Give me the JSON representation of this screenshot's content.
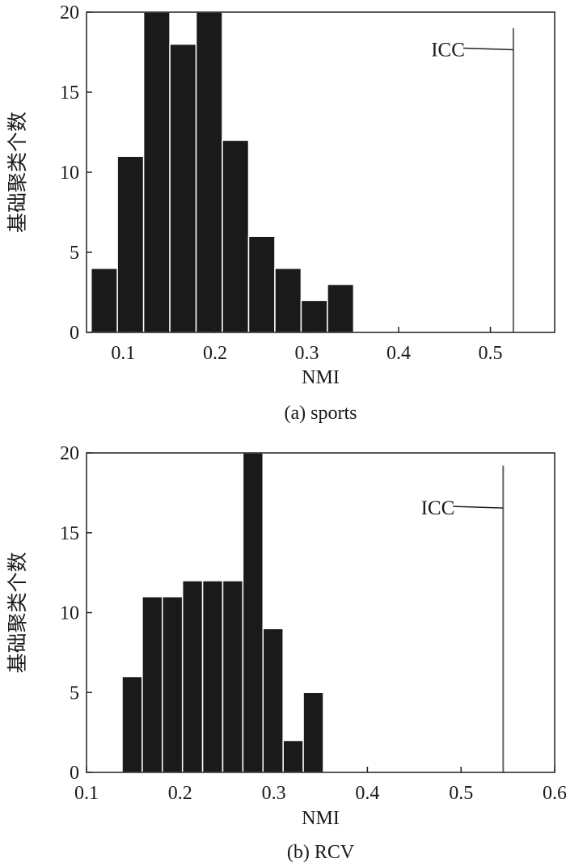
{
  "colors": {
    "bar": "#1a1a1a",
    "bar_edge": "#ffffff",
    "axis": "#222222",
    "icc_line": "#666666"
  },
  "chart_data": [
    {
      "type": "bar",
      "title": "",
      "caption": "(a) sports",
      "xlabel": "NMI",
      "ylabel": "基础聚类个数",
      "xlim": [
        0.06,
        0.57
      ],
      "ylim": [
        0,
        20
      ],
      "xticks": [
        0.1,
        0.2,
        0.3,
        0.4,
        0.5
      ],
      "xtick_labels": [
        "0.1",
        "0.2",
        "0.3",
        "0.4",
        "0.5"
      ],
      "yticks": [
        0,
        5,
        10,
        15,
        20
      ],
      "ytick_labels": [
        "0",
        "5",
        "10",
        "15",
        "20"
      ],
      "bin_width": 0.0286,
      "bin_starts": [
        0.065,
        0.0936,
        0.1222,
        0.1508,
        0.1794,
        0.208,
        0.2366,
        0.2652,
        0.2938,
        0.3224
      ],
      "values": [
        4,
        11,
        20,
        18,
        20,
        12,
        6,
        4,
        2,
        3
      ],
      "annotation": {
        "text": "ICC",
        "x": 0.525,
        "y_top": 19,
        "label_y": 17.7
      }
    },
    {
      "type": "bar",
      "title": "",
      "caption": "(b) RCV",
      "xlabel": "NMI",
      "ylabel": "基础聚类个数",
      "xlim": [
        0.1,
        0.6
      ],
      "ylim": [
        0,
        20
      ],
      "xticks": [
        0.1,
        0.2,
        0.3,
        0.4,
        0.5,
        0.6
      ],
      "xtick_labels": [
        "0.1",
        "0.2",
        "0.3",
        "0.4",
        "0.5",
        "0.6"
      ],
      "yticks": [
        0,
        5,
        10,
        15,
        20
      ],
      "ytick_labels": [
        "0",
        "5",
        "10",
        "15",
        "20"
      ],
      "bin_width": 0.0215,
      "bin_starts": [
        0.138,
        0.1595,
        0.181,
        0.2025,
        0.224,
        0.2455,
        0.267,
        0.2885,
        0.31,
        0.3315
      ],
      "values": [
        6,
        11,
        11,
        12,
        12,
        12,
        20,
        9,
        2,
        5
      ],
      "annotation": {
        "text": "ICC",
        "x": 0.545,
        "y_top": 19.2,
        "label_y": 16.6
      }
    }
  ]
}
